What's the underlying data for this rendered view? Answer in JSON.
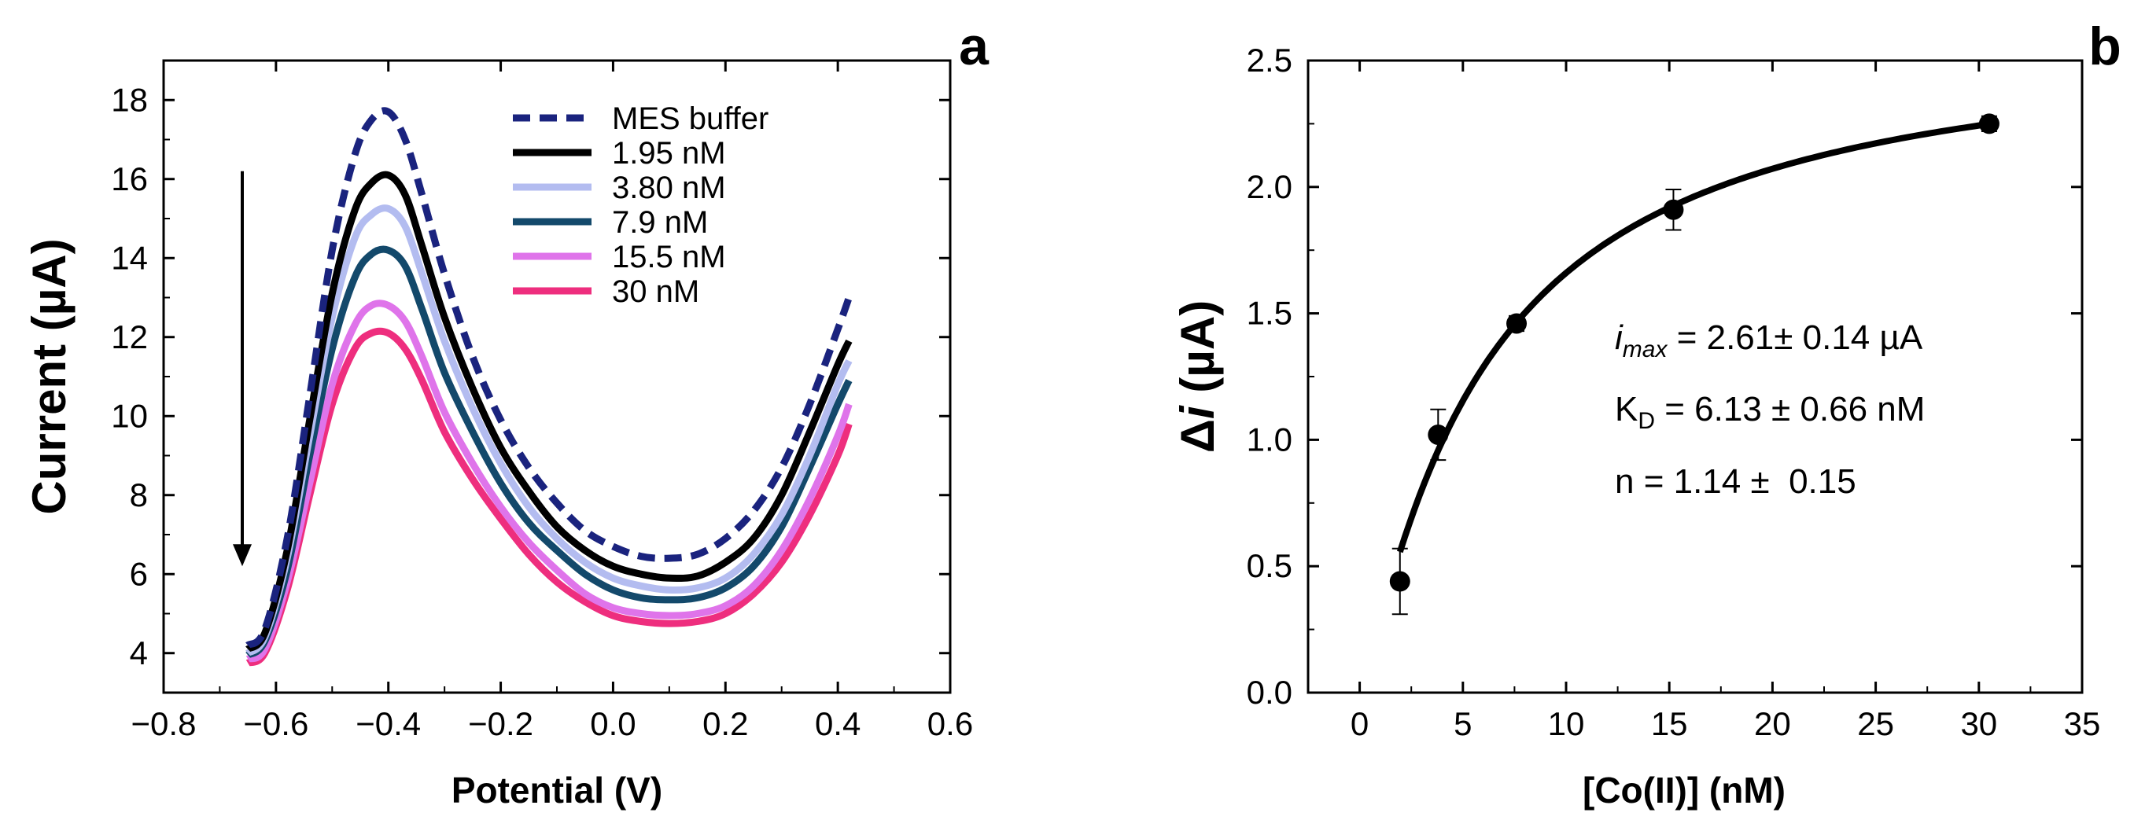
{
  "chart_data": [
    {
      "panel_label": "a",
      "type": "line",
      "xlabel": "Potential (V)",
      "ylabel": "Current (µA)",
      "xlim": [
        -0.8,
        0.6
      ],
      "ylim": [
        3,
        19
      ],
      "xticks": [
        -0.8,
        -0.6,
        -0.4,
        -0.2,
        0.0,
        0.2,
        0.4,
        0.6
      ],
      "xtick_labels": [
        "−0.8",
        "−0.6",
        "−0.4",
        "−0.2",
        "0.0",
        "0.2",
        "0.4",
        "0.6"
      ],
      "yticks": [
        4,
        6,
        8,
        10,
        12,
        14,
        16,
        18
      ],
      "ytick_labels": [
        "4",
        "6",
        "8",
        "10",
        "12",
        "14",
        "16",
        "18"
      ],
      "legend_position": "top-right",
      "arrow": {
        "x": -0.66,
        "y_from": 16.2,
        "y_to": 6.2
      },
      "x": [
        -0.65,
        -0.62,
        -0.58,
        -0.54,
        -0.5,
        -0.46,
        -0.43,
        -0.4,
        -0.37,
        -0.34,
        -0.3,
        -0.25,
        -0.2,
        -0.15,
        -0.1,
        -0.05,
        0.0,
        0.05,
        0.1,
        0.15,
        0.2,
        0.25,
        0.3,
        0.35,
        0.4,
        0.42
      ],
      "series": [
        {
          "name": "MES buffer",
          "color": "#1a237e",
          "dashed": true,
          "values": [
            4.2,
            4.6,
            6.9,
            10.5,
            14.2,
            16.6,
            17.5,
            17.7,
            17.0,
            15.6,
            13.6,
            11.5,
            9.9,
            8.7,
            7.8,
            7.1,
            6.7,
            6.45,
            6.4,
            6.5,
            6.9,
            7.6,
            8.7,
            10.3,
            12.2,
            13.0
          ]
        },
        {
          "name": "1.95 nM",
          "color": "#000000",
          "dashed": false,
          "values": [
            4.1,
            4.5,
            6.6,
            9.9,
            13.1,
            15.2,
            15.9,
            16.1,
            15.6,
            14.3,
            12.5,
            10.7,
            9.2,
            8.1,
            7.2,
            6.6,
            6.2,
            6.0,
            5.9,
            5.95,
            6.3,
            6.9,
            8.0,
            9.6,
            11.3,
            11.9
          ]
        },
        {
          "name": "3.80 nM",
          "color": "#b3bcf0",
          "dashed": false,
          "values": [
            4.0,
            4.4,
            6.4,
            9.5,
            12.5,
            14.5,
            15.1,
            15.25,
            14.8,
            13.6,
            11.9,
            10.2,
            8.8,
            7.7,
            6.9,
            6.3,
            5.9,
            5.7,
            5.6,
            5.65,
            5.9,
            6.5,
            7.5,
            9.0,
            10.8,
            11.4
          ]
        },
        {
          "name": "7.9 nM",
          "color": "#13496b",
          "dashed": false,
          "values": [
            3.95,
            4.3,
            6.1,
            9.0,
            11.7,
            13.5,
            14.1,
            14.2,
            13.8,
            12.7,
            11.1,
            9.6,
            8.3,
            7.3,
            6.6,
            6.0,
            5.6,
            5.4,
            5.35,
            5.4,
            5.65,
            6.2,
            7.2,
            8.7,
            10.3,
            10.9
          ]
        },
        {
          "name": "15.5 nM",
          "color": "#df74ea",
          "dashed": false,
          "values": [
            3.85,
            4.1,
            5.8,
            8.3,
            10.8,
            12.3,
            12.8,
            12.8,
            12.4,
            11.5,
            10.1,
            8.8,
            7.7,
            6.8,
            6.1,
            5.5,
            5.15,
            5.0,
            4.95,
            5.0,
            5.2,
            5.7,
            6.6,
            7.9,
            9.5,
            10.3
          ]
        },
        {
          "name": "30 nM",
          "color": "#ee2e7e",
          "dashed": false,
          "values": [
            3.75,
            4.0,
            5.6,
            8.0,
            10.3,
            11.7,
            12.1,
            12.1,
            11.7,
            10.9,
            9.6,
            8.4,
            7.4,
            6.5,
            5.8,
            5.3,
            4.95,
            4.8,
            4.75,
            4.8,
            5.0,
            5.5,
            6.3,
            7.5,
            9.0,
            9.8
          ]
        }
      ]
    },
    {
      "panel_label": "b",
      "type": "scatter",
      "xlabel": "[Co(II)] (nM)",
      "ylabel_symbol": "Δ",
      "ylabel_var": "i",
      "ylabel_unit": " (µA)",
      "xlim": [
        -2.5,
        35
      ],
      "ylim": [
        0.0,
        2.5
      ],
      "xticks": [
        0,
        5,
        10,
        15,
        20,
        25,
        30,
        35
      ],
      "xtick_labels": [
        "0",
        "5",
        "10",
        "15",
        "20",
        "25",
        "30",
        "35"
      ],
      "yticks": [
        0.0,
        0.5,
        1.0,
        1.5,
        2.0,
        2.5
      ],
      "ytick_labels": [
        "0.0",
        "0.5",
        "1.0",
        "1.5",
        "2.0",
        "2.5"
      ],
      "points": [
        {
          "x": 1.95,
          "y": 0.44,
          "err": 0.13
        },
        {
          "x": 3.8,
          "y": 1.02,
          "err": 0.1
        },
        {
          "x": 7.6,
          "y": 1.46,
          "err": 0.03
        },
        {
          "x": 15.2,
          "y": 1.91,
          "err": 0.08
        },
        {
          "x": 30.5,
          "y": 2.25,
          "err": 0.03
        }
      ],
      "fit": {
        "model": "hill",
        "imax": 2.61,
        "KD": 6.13,
        "n": 1.14,
        "x_from": 1.95,
        "x_to": 30.5
      },
      "annotations": {
        "imax_symbol": "i",
        "imax_subscript": "max",
        "imax_text": " = 2.61± 0.14 µA",
        "kd_symbol": "K",
        "kd_subscript": "D",
        "kd_text": " = 6.13 ± 0.66 nM",
        "n_text": "n = 1.14 ±  0.15"
      }
    }
  ]
}
